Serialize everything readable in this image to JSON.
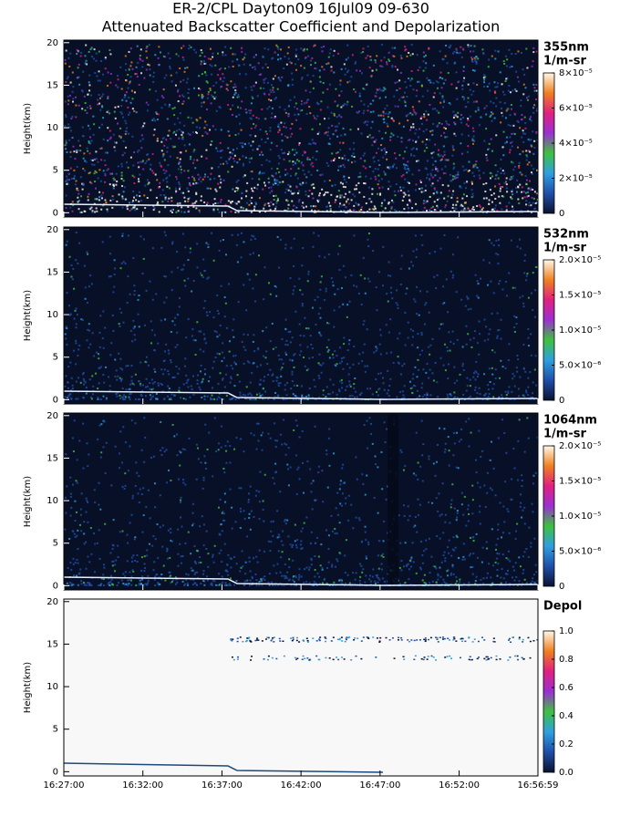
{
  "chart_data": [
    {
      "type": "heatmap",
      "title": "ER-2/CPL Dayton09 16Jul09 09-630",
      "subtitle": "Attenuated Backscatter Coefficient and Depolarization",
      "ylabel": "Height(km)",
      "ylim": [
        -0.5,
        20.3
      ],
      "yticks": [
        0,
        5,
        10,
        15,
        20
      ],
      "colorbar_label": [
        "355nm",
        "1/m-sr"
      ],
      "clim": [
        0,
        8e-05
      ],
      "cticks": [
        0,
        {
          "value": 2e-05,
          "label": "2×10⁻⁵"
        },
        {
          "value": 4e-05,
          "label": "4×10⁻⁵"
        },
        {
          "value": 6e-05,
          "label": "6×10⁻⁵"
        },
        {
          "value": 8e-05,
          "label": "8×10⁻⁵"
        }
      ],
      "colormap": [
        "#0a1230",
        "#1f4fa8",
        "#2f9fe0",
        "#3fc040",
        "#9a30d0",
        "#e02080",
        "#f08020",
        "#fff8e8"
      ]
    },
    {
      "type": "heatmap",
      "ylabel": "Height(km)",
      "ylim": [
        -0.5,
        20.3
      ],
      "yticks": [
        0,
        5,
        10,
        15,
        20
      ],
      "colorbar_label": [
        "532nm",
        "1/m-sr"
      ],
      "clim": [
        0,
        2e-05
      ],
      "cticks": [
        0,
        {
          "value": 5e-06,
          "label": "5.0×10⁻⁶"
        },
        {
          "value": 1e-05,
          "label": "1.0×10⁻⁵"
        },
        {
          "value": 1.5e-05,
          "label": "1.5×10⁻⁵"
        },
        {
          "value": 2e-05,
          "label": "2.0×10⁻⁵"
        }
      ],
      "colormap": [
        "#0a1230",
        "#1f4fa8",
        "#2f9fe0",
        "#3fc040",
        "#9a30d0",
        "#e02080",
        "#f08020",
        "#fff8e8"
      ]
    },
    {
      "type": "heatmap",
      "ylabel": "Height(km)",
      "ylim": [
        -0.5,
        20.3
      ],
      "yticks": [
        0,
        5,
        10,
        15,
        20
      ],
      "colorbar_label": [
        "1064nm",
        "1/m-sr"
      ],
      "clim": [
        0,
        2e-05
      ],
      "cticks": [
        0,
        {
          "value": 5e-06,
          "label": "5.0×10⁻⁶"
        },
        {
          "value": 1e-05,
          "label": "1.0×10⁻⁵"
        },
        {
          "value": 1.5e-05,
          "label": "1.5×10⁻⁵"
        },
        {
          "value": 2e-05,
          "label": "2.0×10⁻⁵"
        }
      ],
      "colormap": [
        "#0a1230",
        "#1f4fa8",
        "#2f9fe0",
        "#3fc040",
        "#9a30d0",
        "#e02080",
        "#f08020",
        "#fff8e8"
      ]
    },
    {
      "type": "heatmap",
      "ylabel": "Height(km)",
      "ylim": [
        -0.5,
        20.3
      ],
      "yticks": [
        0,
        5,
        10,
        15,
        20
      ],
      "colorbar_label": [
        "Depol"
      ],
      "clim": [
        0,
        1
      ],
      "cticks": [
        {
          "value": 0,
          "label": "0.0"
        },
        0.2,
        0.4,
        0.6,
        0.8,
        {
          "value": 1,
          "label": "1.0"
        }
      ],
      "colormap": [
        "#0a1230",
        "#1f4fa8",
        "#2f9fe0",
        "#3fc040",
        "#9a30d0",
        "#e02080",
        "#f08020",
        "#fff8e8"
      ],
      "xlim": [
        0,
        1799
      ],
      "xticks": [
        {
          "value": 0,
          "label": "16:27:00"
        },
        {
          "value": 300,
          "label": "16:32:00"
        },
        {
          "value": 600,
          "label": "16:37:00"
        },
        {
          "value": 900,
          "label": "16:42:00"
        },
        {
          "value": 1200,
          "label": "16:47:00"
        },
        {
          "value": 1500,
          "label": "16:52:00"
        },
        {
          "value": 1799,
          "label": "16:56:59"
        }
      ]
    }
  ]
}
